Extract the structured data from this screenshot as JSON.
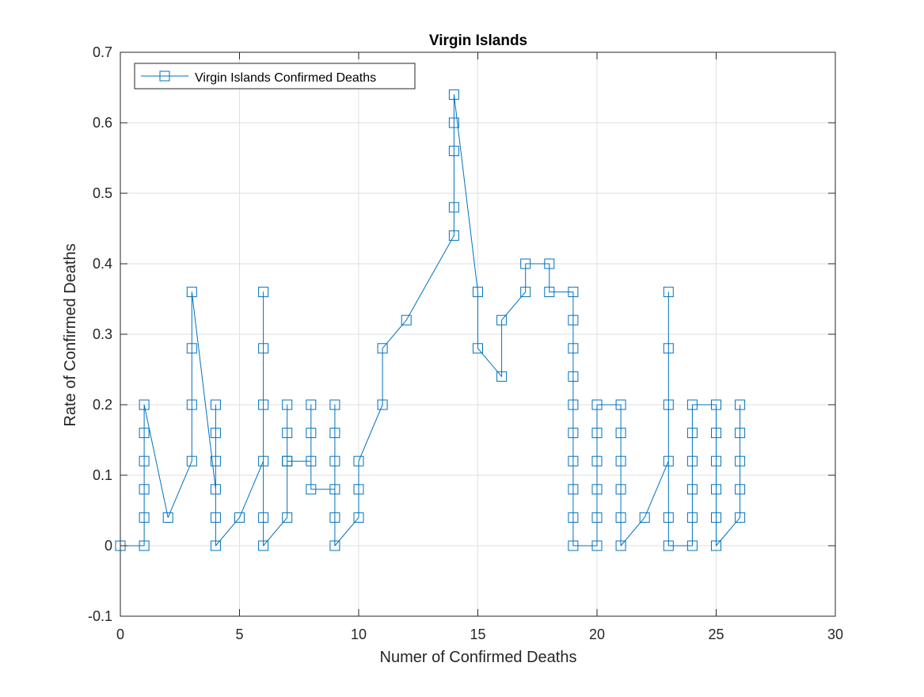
{
  "chart_data": {
    "type": "line",
    "title": "Virgin Islands",
    "xlabel": "Numer of Confirmed Deaths",
    "ylabel": "Rate of Confirmed Deaths",
    "xlim": [
      0,
      30
    ],
    "ylim": [
      -0.1,
      0.7
    ],
    "xticks": [
      0,
      5,
      10,
      15,
      20,
      25,
      30
    ],
    "yticks": [
      -0.1,
      0,
      0.1,
      0.2,
      0.3,
      0.4,
      0.5,
      0.6,
      0.7
    ],
    "xtick_labels": [
      "0",
      "5",
      "10",
      "15",
      "20",
      "25",
      "30"
    ],
    "ytick_labels": [
      "-0.1",
      "0",
      "0.1",
      "0.2",
      "0.3",
      "0.4",
      "0.5",
      "0.6",
      "0.7"
    ],
    "grid": true,
    "legend_position": "top-left",
    "series": [
      {
        "name": "Virgin Islands Confirmed Deaths",
        "color": "#0072BD",
        "marker": "square",
        "x": [
          0,
          1,
          1,
          1,
          1,
          1,
          1,
          2,
          3,
          3,
          3,
          3,
          4,
          4,
          4,
          4,
          4,
          4,
          5,
          6,
          6,
          6,
          6,
          6,
          6,
          7,
          7,
          7,
          7,
          7,
          8,
          8,
          8,
          8,
          9,
          9,
          9,
          9,
          9,
          9,
          10,
          10,
          10,
          11,
          11,
          12,
          14,
          14,
          14,
          14,
          14,
          15,
          15,
          16,
          16,
          17,
          17,
          18,
          18,
          19,
          19,
          19,
          19,
          19,
          19,
          19,
          19,
          19,
          19,
          20,
          20,
          20,
          20,
          20,
          20,
          21,
          21,
          21,
          21,
          21,
          21,
          22,
          23,
          23,
          23,
          23,
          23,
          23,
          24,
          24,
          24,
          24,
          24,
          24,
          25,
          25,
          25,
          25,
          25,
          25,
          26,
          26,
          26,
          26,
          26
        ],
        "y": [
          0,
          0,
          0.04,
          0.08,
          0.12,
          0.16,
          0.2,
          0.04,
          0.12,
          0.2,
          0.28,
          0.36,
          0.08,
          0.12,
          0.16,
          0.2,
          0.04,
          0,
          0.04,
          0.12,
          0.2,
          0.28,
          0.36,
          0.04,
          0,
          0.04,
          0.12,
          0.16,
          0.2,
          0.12,
          0.12,
          0.16,
          0.2,
          0.08,
          0.08,
          0.12,
          0.16,
          0.2,
          0.04,
          0,
          0.04,
          0.08,
          0.12,
          0.2,
          0.28,
          0.32,
          0.44,
          0.48,
          0.56,
          0.6,
          0.64,
          0.36,
          0.28,
          0.24,
          0.32,
          0.36,
          0.4,
          0.4,
          0.36,
          0.36,
          0.32,
          0.28,
          0.24,
          0.2,
          0.16,
          0.12,
          0.08,
          0.04,
          0,
          0,
          0.04,
          0.08,
          0.12,
          0.16,
          0.2,
          0.2,
          0.16,
          0.12,
          0.08,
          0.04,
          0,
          0.04,
          0.12,
          0.2,
          0.28,
          0.36,
          0.04,
          0,
          0,
          0.04,
          0.08,
          0.12,
          0.16,
          0.2,
          0.2,
          0.16,
          0.12,
          0.08,
          0.04,
          0,
          0.04,
          0.08,
          0.12,
          0.16,
          0.2
        ]
      }
    ]
  }
}
